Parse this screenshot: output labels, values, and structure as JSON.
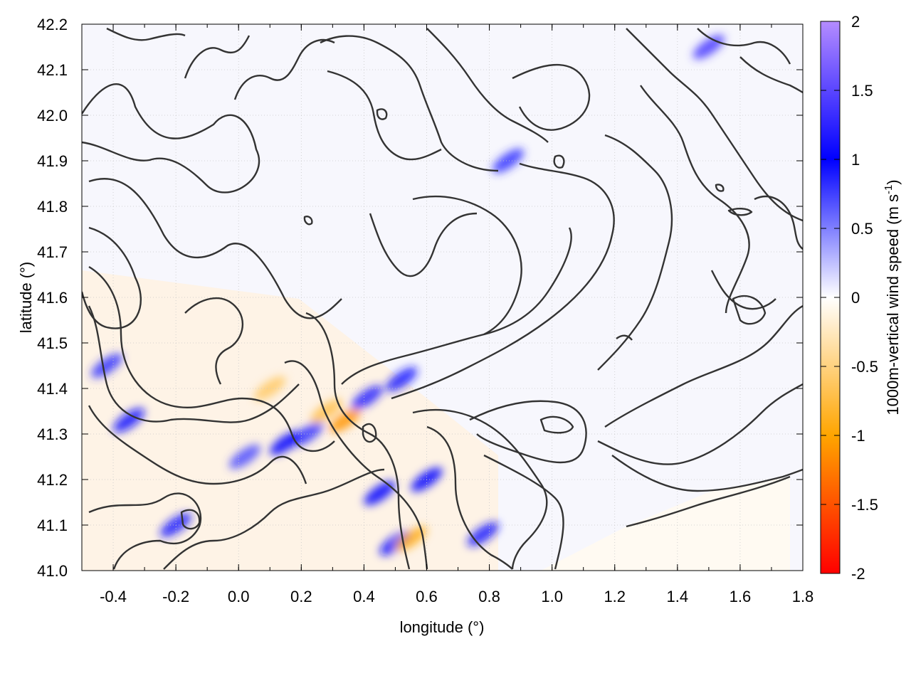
{
  "chart_data": {
    "type": "heatmap",
    "title": "",
    "xlabel": "longitude (°)",
    "ylabel": "latitude (°)",
    "xlim": [
      -0.5,
      1.8
    ],
    "ylim": [
      41.0,
      42.2
    ],
    "xticks": [
      -0.4,
      -0.2,
      0.0,
      0.2,
      0.4,
      0.6,
      0.8,
      1.0,
      1.2,
      1.4,
      1.6,
      1.8
    ],
    "xtick_labels": [
      "-0.4",
      "-0.2",
      "0.0",
      "0.2",
      "0.4",
      "0.6",
      "0.8",
      "1.0",
      "1.2",
      "1.4",
      "1.6",
      "1.8"
    ],
    "yticks": [
      41.0,
      41.1,
      41.2,
      41.3,
      41.4,
      41.5,
      41.6,
      41.7,
      41.8,
      41.9,
      42.0,
      42.1,
      42.2
    ],
    "ytick_labels": [
      "41.0",
      "41.1",
      "41.2",
      "41.3",
      "41.4",
      "41.5",
      "41.6",
      "41.7",
      "41.8",
      "41.9",
      "42.0",
      "42.1",
      "42.2"
    ],
    "grid": true,
    "colorbar": {
      "label": "1000m-vertical wind speed (m s",
      "label_superscript": "-1",
      "label_suffix": ")",
      "range": [
        -2,
        2
      ],
      "ticks": [
        2,
        1.5,
        1,
        0.5,
        0,
        -0.5,
        -1,
        -1.5,
        -2
      ],
      "tick_labels": [
        "2",
        "1.5",
        "1",
        "0.5",
        "0",
        "-0.5",
        "-1",
        "-1.5",
        "-2"
      ],
      "colors": [
        "#ff0000",
        "#ffa500",
        "#ffffff",
        "#0000ff",
        "#b48cff"
      ]
    },
    "contour_color": "#333333",
    "hotspots": [
      {
        "lon": 0.34,
        "lat": 41.33,
        "value": -1.1
      },
      {
        "lon": 0.41,
        "lat": 41.38,
        "value": 1.2
      },
      {
        "lon": 0.52,
        "lat": 41.42,
        "value": 0.9
      },
      {
        "lon": 0.22,
        "lat": 41.3,
        "value": 0.8
      },
      {
        "lon": 0.15,
        "lat": 41.28,
        "value": 1.0
      },
      {
        "lon": -0.35,
        "lat": 41.33,
        "value": 1.1
      },
      {
        "lon": -0.42,
        "lat": 41.45,
        "value": 0.8
      },
      {
        "lon": 0.6,
        "lat": 41.2,
        "value": 1.0
      },
      {
        "lon": 0.5,
        "lat": 41.06,
        "value": 1.1
      },
      {
        "lon": 0.55,
        "lat": 41.07,
        "value": -0.9
      },
      {
        "lon": 0.78,
        "lat": 41.08,
        "value": 0.9
      },
      {
        "lon": 1.5,
        "lat": 42.15,
        "value": 1.4
      },
      {
        "lon": 0.86,
        "lat": 41.9,
        "value": 0.8
      },
      {
        "lon": 0.45,
        "lat": 41.17,
        "value": 1.0
      },
      {
        "lon": 0.28,
        "lat": 41.35,
        "value": -0.7
      },
      {
        "lon": 0.1,
        "lat": 41.4,
        "value": -0.6
      },
      {
        "lon": -0.2,
        "lat": 41.1,
        "value": 0.9
      },
      {
        "lon": 0.02,
        "lat": 41.25,
        "value": 0.7
      }
    ]
  }
}
